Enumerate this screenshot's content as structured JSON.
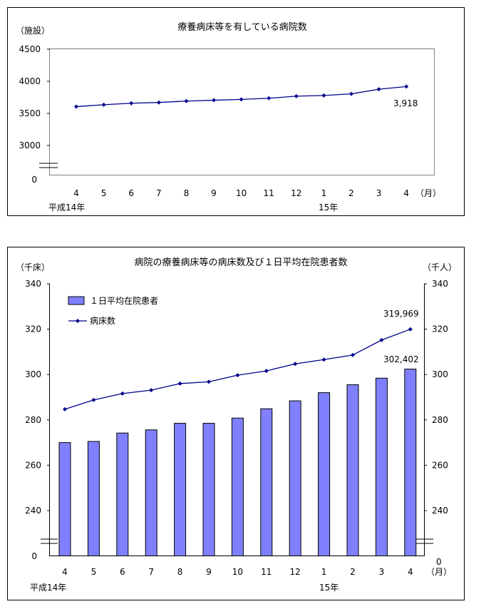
{
  "chart_data": [
    {
      "type": "line",
      "title": "療養病床等を有している病院数",
      "ylabel": "（施設）",
      "xunit": "（月）",
      "categories": [
        "4",
        "5",
        "6",
        "7",
        "8",
        "9",
        "10",
        "11",
        "12",
        "1",
        "2",
        "3",
        "4"
      ],
      "era_labels": {
        "start": "平成14年",
        "new_year": "15年"
      },
      "ylim": [
        3000,
        4500
      ],
      "yticks": [
        3000,
        3500,
        4000,
        4500
      ],
      "axis_break_zero": "0",
      "grid": false,
      "series": [
        {
          "values": [
            3605,
            3635,
            3658,
            3670,
            3692,
            3705,
            3718,
            3736,
            3768,
            3779,
            3804,
            3876,
            3918
          ],
          "color": "#00008b"
        }
      ],
      "annotations": [
        {
          "index": 12,
          "text": "3,918"
        }
      ]
    },
    {
      "type": "bar+line",
      "title": "病院の療養病床等の病床数及び１日平均在院患者数",
      "ylabel_left": "（千床）",
      "ylabel_right": "（千人）",
      "xunit": "（月）",
      "categories": [
        "4",
        "5",
        "6",
        "7",
        "8",
        "9",
        "10",
        "11",
        "12",
        "1",
        "2",
        "3",
        "4"
      ],
      "era_labels": {
        "start": "平成14年",
        "new_year": "15年"
      },
      "ylim": [
        240,
        340
      ],
      "yticks": [
        240,
        260,
        280,
        300,
        320,
        340
      ],
      "axis_break_zero": "0",
      "grid": false,
      "legend_position": "top-left",
      "series": [
        {
          "name": "１日平均在院患者",
          "kind": "bar",
          "axis": "right",
          "color": "#8080ff",
          "values": [
            270.0,
            270.5,
            274.2,
            275.6,
            278.5,
            278.5,
            280.8,
            284.9,
            288.4,
            292.0,
            295.5,
            298.4,
            302.402
          ]
        },
        {
          "name": "病床数",
          "kind": "line",
          "axis": "left",
          "color": "#00008b",
          "values": [
            284.7,
            288.8,
            291.6,
            293.1,
            296.0,
            296.8,
            299.7,
            301.6,
            304.7,
            306.6,
            308.6,
            315.2,
            319.969
          ]
        }
      ],
      "annotations": [
        {
          "series": 0,
          "index": 12,
          "text": "302,402"
        },
        {
          "series": 1,
          "index": 12,
          "text": "319,969"
        }
      ]
    }
  ]
}
